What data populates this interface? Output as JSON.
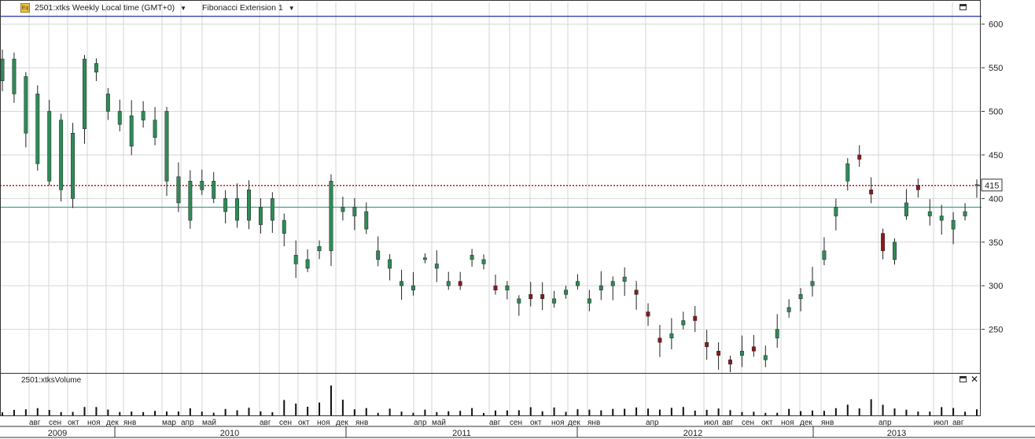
{
  "header": {
    "icon": "chart-icon",
    "symbol_label": "2501:xtks Weekly Local time (GMT+0)",
    "study_label": "Fibonacci Extension 1"
  },
  "volume_panel": {
    "title": "2501:xtksVolume"
  },
  "colors": {
    "up_candle": "#2e8b57",
    "down_candle": "#8b1a1a",
    "fib_top": "#1f2fa8",
    "fib_red": "#cc1111",
    "fib_teal": "#4fa89a",
    "grid": "#d6d6d6",
    "volume_bar": "#111111"
  },
  "chart_data": {
    "type": "candlestick",
    "interval": "weekly",
    "title": "2501:xtks Weekly Local time (GMT+0)",
    "y_axis": {
      "ylim": [
        200,
        625
      ],
      "ticks": [
        250,
        300,
        350,
        400,
        450,
        500,
        550,
        600
      ],
      "side": "right"
    },
    "last_price_label": 415,
    "reference_lines": [
      {
        "value": 609,
        "color": "#1f2fa8",
        "style": "solid"
      },
      {
        "value": 415,
        "color": "#cc1111",
        "style": "dotted"
      },
      {
        "value": 390,
        "color": "#4fa89a",
        "style": "solid"
      }
    ],
    "x_axis": {
      "months": [
        "авг",
        "сен",
        "окт",
        "ноя",
        "дек",
        "янв",
        "мар",
        "апр",
        "май",
        "авг",
        "сен",
        "окт",
        "ноя",
        "дек",
        "янв",
        "апр",
        "май",
        "авг",
        "сен",
        "окт",
        "ноя",
        "дек",
        "янв",
        "апр",
        "июл",
        "авг",
        "сен",
        "окт",
        "ноя",
        "дек",
        "янв",
        "апр",
        "июл",
        "авг"
      ],
      "years": [
        "2009",
        "2010",
        "2011",
        "2012",
        "2013"
      ]
    },
    "path": [
      [
        535,
        560
      ],
      [
        520,
        560
      ],
      [
        475,
        540
      ],
      [
        440,
        520
      ],
      [
        420,
        500
      ],
      [
        410,
        490
      ],
      [
        400,
        475
      ],
      [
        480,
        560
      ],
      [
        545,
        555
      ],
      [
        500,
        520
      ],
      [
        485,
        500
      ],
      [
        460,
        495
      ],
      [
        490,
        500
      ],
      [
        470,
        490
      ],
      [
        420,
        500
      ],
      [
        395,
        425
      ],
      [
        375,
        420
      ],
      [
        410,
        420
      ],
      [
        400,
        420
      ],
      [
        385,
        400
      ],
      [
        375,
        400
      ],
      [
        375,
        410
      ],
      [
        370,
        390
      ],
      [
        375,
        400
      ],
      [
        360,
        375
      ],
      [
        325,
        335
      ],
      [
        320,
        330
      ],
      [
        340,
        345
      ],
      [
        340,
        420
      ],
      [
        385,
        390
      ],
      [
        380,
        390
      ],
      [
        365,
        385
      ],
      [
        330,
        340
      ],
      [
        320,
        330
      ],
      [
        300,
        305
      ],
      [
        295,
        300
      ],
      [
        330,
        332
      ],
      [
        320,
        325
      ],
      [
        300,
        305
      ],
      [
        305,
        300
      ],
      [
        330,
        335
      ],
      [
        325,
        330
      ],
      [
        300,
        295
      ],
      [
        295,
        300
      ],
      [
        280,
        285
      ],
      [
        290,
        285
      ],
      [
        290,
        285
      ],
      [
        280,
        285
      ],
      [
        290,
        295
      ],
      [
        300,
        305
      ],
      [
        280,
        285
      ],
      [
        295,
        300
      ],
      [
        300,
        305
      ],
      [
        305,
        310
      ],
      [
        295,
        290
      ],
      [
        270,
        265
      ],
      [
        240,
        235
      ],
      [
        240,
        245
      ],
      [
        255,
        260
      ],
      [
        265,
        260
      ],
      [
        235,
        230
      ],
      [
        225,
        220
      ],
      [
        215,
        210
      ],
      [
        220,
        225
      ],
      [
        230,
        225
      ],
      [
        215,
        220
      ],
      [
        240,
        250
      ],
      [
        270,
        275
      ],
      [
        285,
        290
      ],
      [
        300,
        305
      ],
      [
        330,
        340
      ],
      [
        380,
        390
      ],
      [
        420,
        440
      ],
      [
        450,
        445
      ],
      [
        410,
        405
      ],
      [
        360,
        340
      ],
      [
        330,
        350
      ],
      [
        380,
        395
      ],
      [
        415,
        410
      ],
      [
        380,
        385
      ],
      [
        375,
        380
      ],
      [
        365,
        375
      ],
      [
        380,
        385
      ],
      [
        415,
        416
      ]
    ],
    "volume": {
      "ylim": [
        0,
        1
      ],
      "description": "weekly volume bars",
      "spikes": [
        "дек 2010"
      ]
    }
  }
}
